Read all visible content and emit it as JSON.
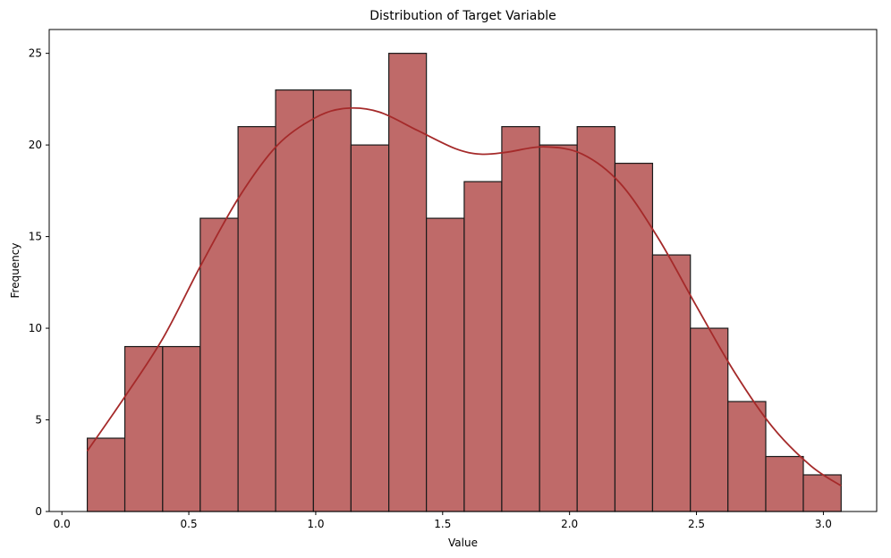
{
  "chart_data": {
    "type": "bar",
    "title": "Distribution of Target Variable",
    "xlabel": "Value",
    "ylabel": "Frequency",
    "bin_edges": [
      0.1,
      0.248,
      0.397,
      0.545,
      0.694,
      0.842,
      0.991,
      1.139,
      1.288,
      1.436,
      1.585,
      1.733,
      1.882,
      2.03,
      2.179,
      2.327,
      2.476,
      2.624,
      2.773,
      2.921,
      3.07
    ],
    "counts": [
      4,
      9,
      9,
      16,
      21,
      23,
      23,
      20,
      25,
      16,
      18,
      21,
      20,
      21,
      19,
      14,
      10,
      6,
      3,
      2
    ],
    "kde": {
      "x": [
        0.1,
        0.25,
        0.4,
        0.55,
        0.7,
        0.85,
        1.0,
        1.12,
        1.25,
        1.4,
        1.55,
        1.65,
        1.75,
        1.9,
        2.05,
        2.2,
        2.35,
        2.5,
        2.65,
        2.8,
        2.95,
        3.07
      ],
      "y": [
        3.3,
        6.3,
        9.5,
        13.5,
        17.2,
        20.0,
        21.5,
        22.0,
        21.8,
        20.8,
        19.8,
        19.5,
        19.6,
        19.9,
        19.5,
        17.9,
        14.9,
        11.2,
        7.6,
        4.6,
        2.5,
        1.4
      ]
    },
    "xlim": [
      -0.05,
      3.21
    ],
    "ylim": [
      0,
      26.3
    ],
    "xticks": [
      0.0,
      0.5,
      1.0,
      1.5,
      2.0,
      2.5,
      3.0
    ],
    "xtick_labels": [
      "0.0",
      "0.5",
      "1.0",
      "1.5",
      "2.0",
      "2.5",
      "3.0"
    ],
    "yticks": [
      0,
      5,
      10,
      15,
      20,
      25
    ],
    "ytick_labels": [
      "0",
      "5",
      "10",
      "15",
      "20",
      "25"
    ],
    "grid": false,
    "colors": {
      "bar_fill": "#bf6a69",
      "bar_edge": "#1a1a1a",
      "kde_line": "#a52a2a",
      "axis": "#000000"
    }
  }
}
